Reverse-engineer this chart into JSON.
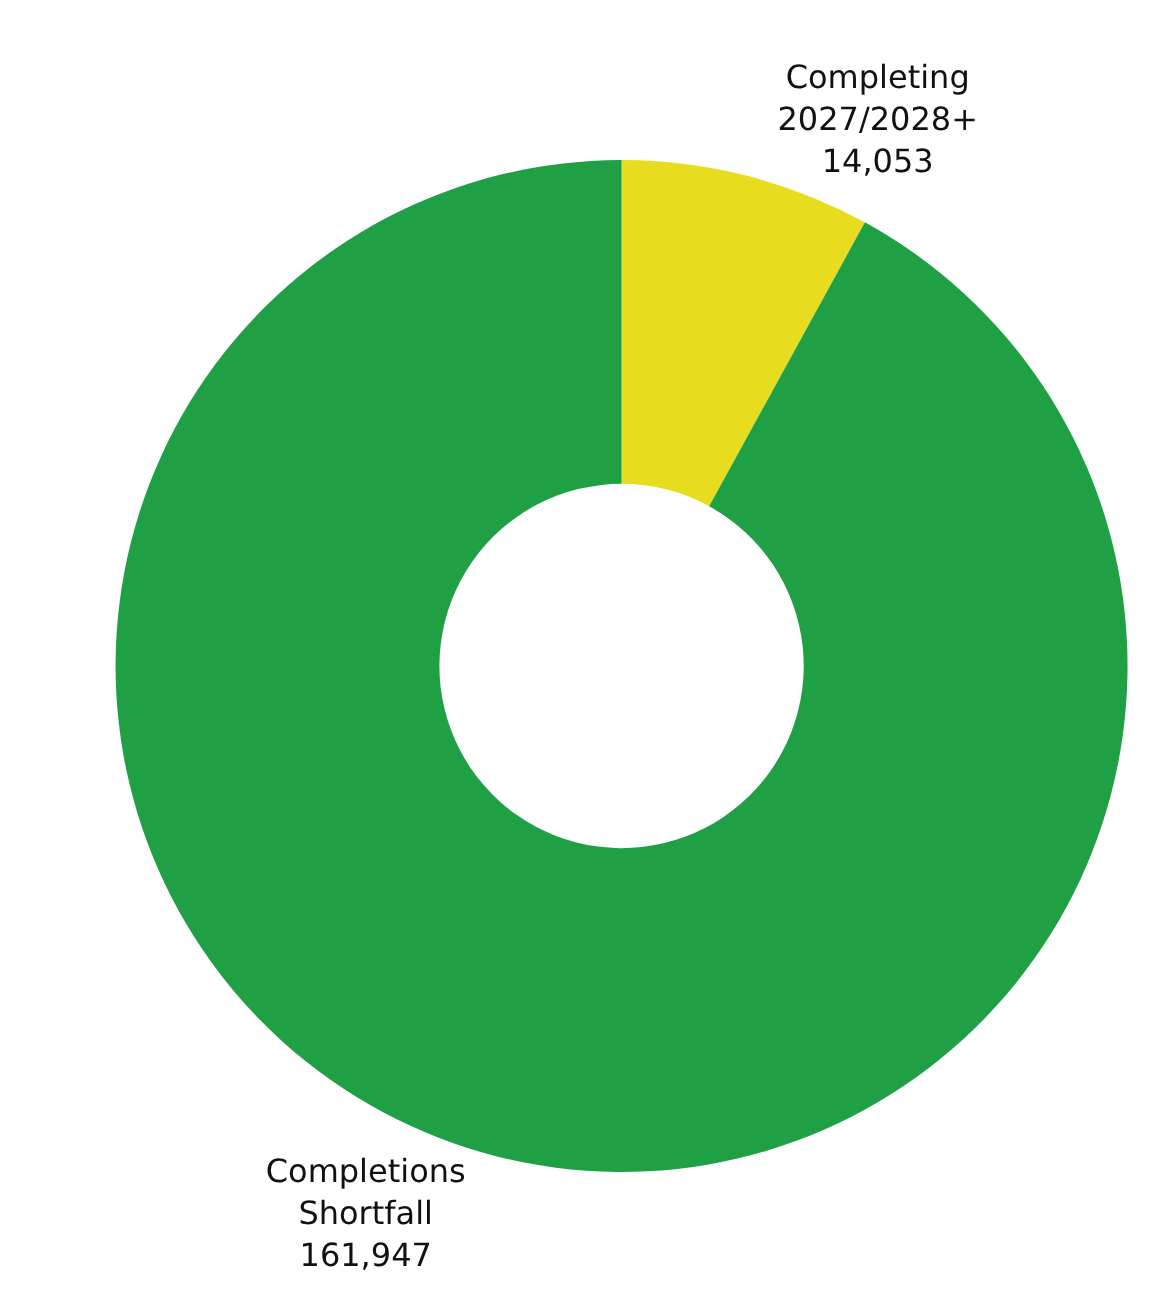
{
  "chart_data": {
    "type": "donut",
    "categories": [
      "Completing 2027/2028+",
      "Completions Shortfall"
    ],
    "values": [
      14053,
      161947
    ],
    "colors": [
      "#e8dc1e",
      "#1fa045"
    ],
    "value_labels": [
      "14,053",
      "161,947"
    ],
    "legend": false
  }
}
